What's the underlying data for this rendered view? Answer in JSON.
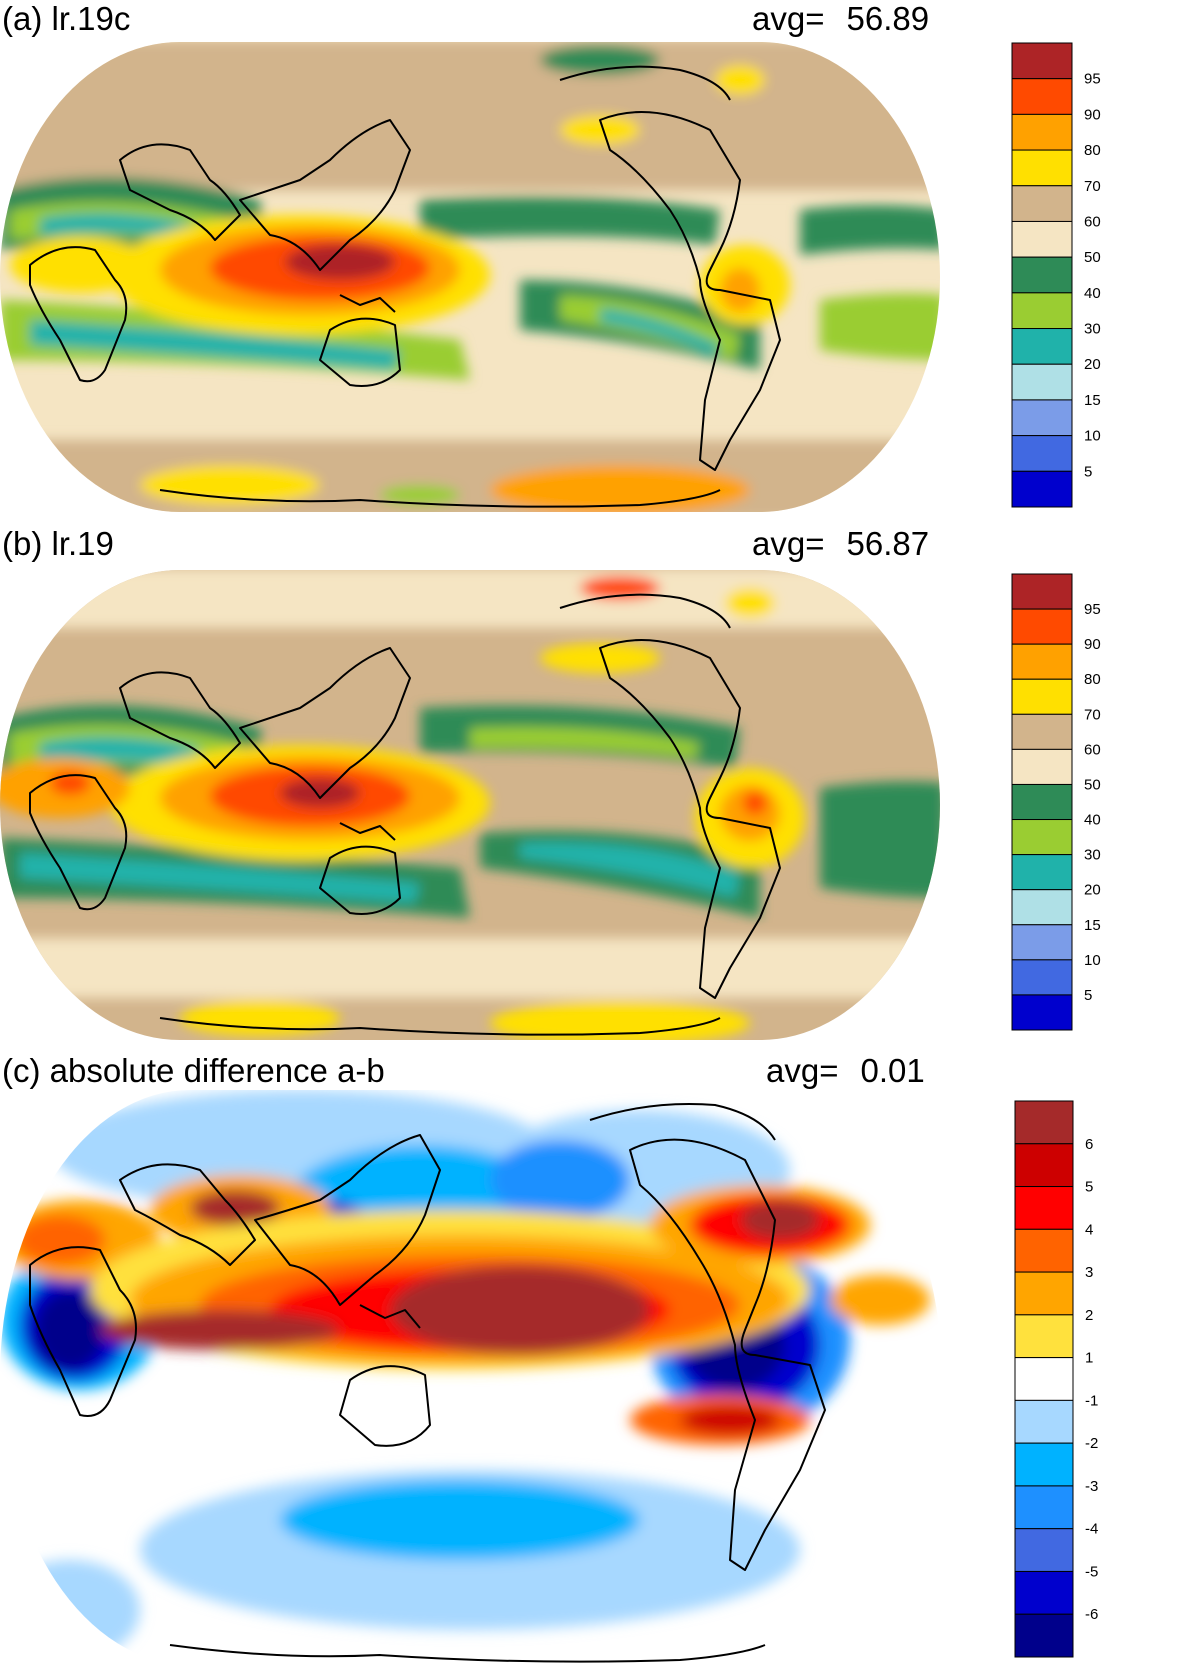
{
  "panels": [
    {
      "id": "a",
      "title": "(a) lr.19c",
      "avg_label": "avg=",
      "avg_value": "56.89",
      "colorbar": {
        "ticks": [
          "95",
          "90",
          "80",
          "70",
          "60",
          "50",
          "40",
          "30",
          "20",
          "15",
          "10",
          "5"
        ],
        "colors": [
          "#ad2426",
          "#ff4a00",
          "#ffa100",
          "#ffe000",
          "#d2b48c",
          "#f5e5c3",
          "#2e8b57",
          "#9acd32",
          "#20b2aa",
          "#afe0e6",
          "#7b9ce8",
          "#4169e1",
          "#0000cd"
        ]
      }
    },
    {
      "id": "b",
      "title": "(b) lr.19",
      "avg_label": "avg=",
      "avg_value": "56.87",
      "colorbar": {
        "ticks": [
          "95",
          "90",
          "80",
          "70",
          "60",
          "50",
          "40",
          "30",
          "20",
          "15",
          "10",
          "5"
        ],
        "colors": [
          "#ad2426",
          "#ff4a00",
          "#ffa100",
          "#ffe000",
          "#d2b48c",
          "#f5e5c3",
          "#2e8b57",
          "#9acd32",
          "#20b2aa",
          "#afe0e6",
          "#7b9ce8",
          "#4169e1",
          "#0000cd"
        ]
      }
    },
    {
      "id": "c",
      "title": "(c) absolute difference a-b",
      "avg_label": "avg=",
      "avg_value": "0.01",
      "colorbar": {
        "ticks": [
          "6",
          "5",
          "4",
          "3",
          "2",
          "1",
          "-1",
          "-2",
          "-3",
          "-4",
          "-5",
          "-6"
        ],
        "colors": [
          "#a52a2a",
          "#cd0000",
          "#ff0000",
          "#ff6300",
          "#ffa500",
          "#ffe13d",
          "#ffffff",
          "#a7d8ff",
          "#00b2ff",
          "#1e90ff",
          "#4169e1",
          "#0000cd",
          "#00008b"
        ]
      }
    }
  ]
}
